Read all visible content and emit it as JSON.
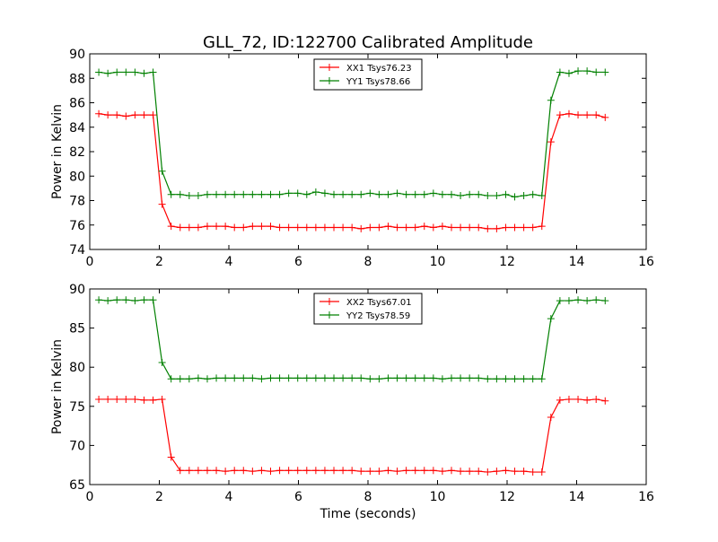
{
  "title": "GLL_72, ID:122700 Calibrated Amplitude",
  "chart_data": [
    {
      "type": "line",
      "title": "GLL_72, ID:122700 Calibrated Amplitude",
      "xlabel": "",
      "ylabel": "Power in Kelvin",
      "xlim": [
        0,
        16
      ],
      "ylim": [
        74,
        90
      ],
      "xticks": [
        "0",
        "2",
        "4",
        "6",
        "8",
        "10",
        "12",
        "14",
        "16"
      ],
      "yticks": [
        "74",
        "76",
        "78",
        "80",
        "82",
        "84",
        "86",
        "88",
        "90"
      ],
      "grid": false,
      "legend_position": "top-center",
      "x": [
        0.26,
        0.52,
        0.78,
        1.04,
        1.3,
        1.56,
        1.82,
        2.08,
        2.34,
        2.6,
        2.86,
        3.12,
        3.38,
        3.64,
        3.9,
        4.16,
        4.42,
        4.68,
        4.94,
        5.2,
        5.46,
        5.72,
        5.98,
        6.24,
        6.5,
        6.76,
        7.02,
        7.28,
        7.54,
        7.8,
        8.06,
        8.32,
        8.58,
        8.84,
        9.1,
        9.36,
        9.62,
        9.88,
        10.14,
        10.4,
        10.66,
        10.92,
        11.18,
        11.44,
        11.7,
        11.96,
        12.22,
        12.48,
        12.74,
        13.0,
        13.26,
        13.52,
        13.78,
        14.04,
        14.3,
        14.56,
        14.82
      ],
      "series": [
        {
          "name": "XX1 Tsys76.23",
          "color": "#ff0000",
          "values": [
            85.1,
            85.0,
            85.0,
            84.9,
            85.0,
            85.0,
            85.0,
            77.7,
            75.9,
            75.8,
            75.8,
            75.8,
            75.9,
            75.9,
            75.9,
            75.8,
            75.8,
            75.9,
            75.9,
            75.9,
            75.8,
            75.8,
            75.8,
            75.8,
            75.8,
            75.8,
            75.8,
            75.8,
            75.8,
            75.7,
            75.8,
            75.8,
            75.9,
            75.8,
            75.8,
            75.8,
            75.9,
            75.8,
            75.9,
            75.8,
            75.8,
            75.8,
            75.8,
            75.7,
            75.7,
            75.8,
            75.8,
            75.8,
            75.8,
            75.9,
            82.8,
            85.0,
            85.1,
            85.0,
            85.0,
            85.0,
            84.8
          ]
        },
        {
          "name": "YY1 Tsys78.66",
          "color": "#008000",
          "values": [
            88.5,
            88.4,
            88.5,
            88.5,
            88.5,
            88.4,
            88.5,
            80.4,
            78.5,
            78.5,
            78.4,
            78.4,
            78.5,
            78.5,
            78.5,
            78.5,
            78.5,
            78.5,
            78.5,
            78.5,
            78.5,
            78.6,
            78.6,
            78.5,
            78.7,
            78.6,
            78.5,
            78.5,
            78.5,
            78.5,
            78.6,
            78.5,
            78.5,
            78.6,
            78.5,
            78.5,
            78.5,
            78.6,
            78.5,
            78.5,
            78.4,
            78.5,
            78.5,
            78.4,
            78.4,
            78.5,
            78.3,
            78.4,
            78.5,
            78.4,
            86.2,
            88.5,
            88.4,
            88.6,
            88.6,
            88.5,
            88.5
          ]
        }
      ]
    },
    {
      "type": "line",
      "title": "",
      "xlabel": "Time (seconds)",
      "ylabel": "Power in Kelvin",
      "xlim": [
        0,
        16
      ],
      "ylim": [
        65,
        90
      ],
      "xticks": [
        "0",
        "2",
        "4",
        "6",
        "8",
        "10",
        "12",
        "14",
        "16"
      ],
      "yticks": [
        "65",
        "70",
        "75",
        "80",
        "85",
        "90"
      ],
      "grid": false,
      "legend_position": "top-center",
      "x": [
        0.26,
        0.52,
        0.78,
        1.04,
        1.3,
        1.56,
        1.82,
        2.08,
        2.34,
        2.6,
        2.86,
        3.12,
        3.38,
        3.64,
        3.9,
        4.16,
        4.42,
        4.68,
        4.94,
        5.2,
        5.46,
        5.72,
        5.98,
        6.24,
        6.5,
        6.76,
        7.02,
        7.28,
        7.54,
        7.8,
        8.06,
        8.32,
        8.58,
        8.84,
        9.1,
        9.36,
        9.62,
        9.88,
        10.14,
        10.4,
        10.66,
        10.92,
        11.18,
        11.44,
        11.7,
        11.96,
        12.22,
        12.48,
        12.74,
        13.0,
        13.26,
        13.52,
        13.78,
        14.04,
        14.3,
        14.56,
        14.82
      ],
      "series": [
        {
          "name": "XX2 Tsys67.01",
          "color": "#ff0000",
          "values": [
            75.9,
            75.9,
            75.9,
            75.9,
            75.9,
            75.8,
            75.8,
            75.9,
            68.5,
            66.8,
            66.8,
            66.8,
            66.8,
            66.8,
            66.7,
            66.8,
            66.8,
            66.7,
            66.8,
            66.7,
            66.8,
            66.8,
            66.8,
            66.8,
            66.8,
            66.8,
            66.8,
            66.8,
            66.8,
            66.7,
            66.7,
            66.7,
            66.8,
            66.7,
            66.8,
            66.8,
            66.8,
            66.8,
            66.7,
            66.8,
            66.7,
            66.7,
            66.7,
            66.6,
            66.7,
            66.8,
            66.7,
            66.7,
            66.6,
            66.6,
            73.6,
            75.8,
            75.9,
            75.9,
            75.8,
            75.9,
            75.7
          ],
          "x_override": [
            0.26,
            0.52,
            0.78,
            1.04,
            1.3,
            1.56,
            1.82,
            2.08,
            2.34,
            2.6,
            2.86,
            3.12,
            3.38,
            3.64,
            3.9,
            4.16,
            4.42,
            4.68,
            4.94,
            5.2,
            5.46,
            5.72,
            5.98,
            6.24,
            6.5,
            6.76,
            7.02,
            7.28,
            7.54,
            7.8,
            8.06,
            8.32,
            8.58,
            8.84,
            9.1,
            9.36,
            9.62,
            9.88,
            10.14,
            10.4,
            10.66,
            10.92,
            11.18,
            11.44,
            11.7,
            11.96,
            12.22,
            12.48,
            12.74,
            13.0,
            13.26,
            13.52,
            13.78,
            14.04,
            14.3,
            14.56,
            14.82
          ]
        },
        {
          "name": "YY2 Tsys78.59",
          "color": "#008000",
          "values": [
            88.6,
            88.5,
            88.6,
            88.6,
            88.5,
            88.6,
            88.6,
            80.6,
            78.5,
            78.5,
            78.5,
            78.6,
            78.5,
            78.6,
            78.6,
            78.6,
            78.6,
            78.6,
            78.5,
            78.6,
            78.6,
            78.6,
            78.6,
            78.6,
            78.6,
            78.6,
            78.6,
            78.6,
            78.6,
            78.6,
            78.5,
            78.5,
            78.6,
            78.6,
            78.6,
            78.6,
            78.6,
            78.6,
            78.5,
            78.6,
            78.6,
            78.6,
            78.6,
            78.5,
            78.5,
            78.5,
            78.5,
            78.5,
            78.5,
            78.5,
            86.2,
            88.5,
            88.5,
            88.6,
            88.5,
            88.6,
            88.5
          ]
        }
      ]
    }
  ]
}
